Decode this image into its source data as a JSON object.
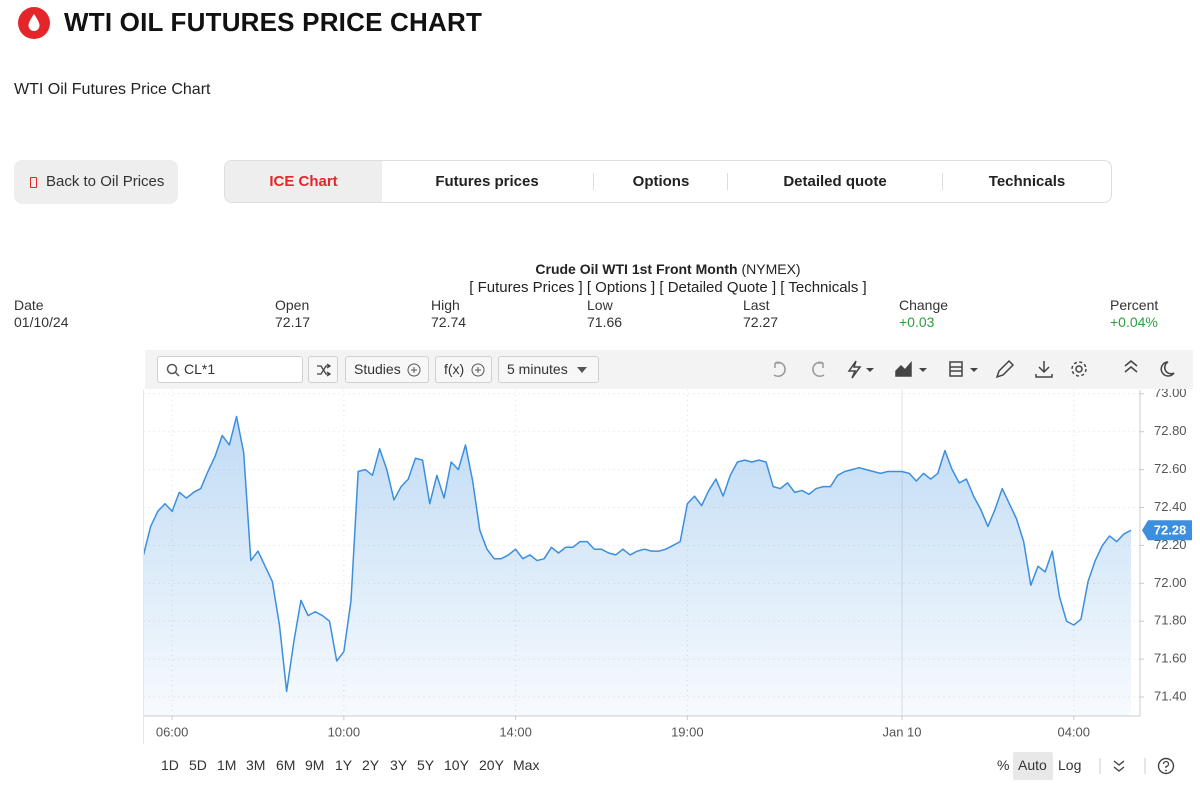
{
  "header": {
    "title": "WTI OIL FUTURES PRICE CHART",
    "subtitle": "WTI Oil Futures Price Chart"
  },
  "nav": {
    "back": "Back to Oil Prices",
    "tabs": [
      "ICE Chart",
      "Futures prices",
      "Options",
      "Detailed quote",
      "Technicals"
    ]
  },
  "quote": {
    "title": "Crude Oil WTI 1st Front Month",
    "exchange": "(NYMEX)",
    "links": [
      "[ Futures Prices ]",
      "[ Options ]",
      "[ Detailed Quote ]",
      "[ Technicals ]"
    ],
    "fields": [
      {
        "label": "Date",
        "value": "01/10/24"
      },
      {
        "label": "Open",
        "value": "72.17"
      },
      {
        "label": "High",
        "value": "72.74"
      },
      {
        "label": "Low",
        "value": "71.66"
      },
      {
        "label": "Last",
        "value": "72.27"
      },
      {
        "label": "Change",
        "value": "+0.03"
      },
      {
        "label": "Percent",
        "value": "+0.04%"
      }
    ]
  },
  "toolbar": {
    "symbol": "CL*1",
    "studies": "Studies",
    "fx": "f(x)",
    "interval": "5 minutes"
  },
  "range_buttons": [
    "1D",
    "5D",
    "1M",
    "3M",
    "6M",
    "9M",
    "1Y",
    "2Y",
    "3Y",
    "5Y",
    "10Y",
    "20Y",
    "Max"
  ],
  "scale_buttons": [
    "%",
    "Auto",
    "Log"
  ],
  "chart_data": {
    "type": "line",
    "color": "#3b8fde",
    "grid": true,
    "categories": [
      null,
      null,
      null,
      null,
      "06:00",
      null,
      null,
      null,
      null,
      null,
      null,
      null,
      null,
      null,
      null,
      null,
      null,
      null,
      null,
      null,
      null,
      null,
      null,
      null,
      null,
      null,
      null,
      null,
      "10:00",
      null,
      null,
      null,
      null,
      null,
      null,
      null,
      null,
      null,
      null,
      null,
      null,
      null,
      null,
      null,
      null,
      null,
      null,
      null,
      null,
      null,
      null,
      null,
      "14:00",
      null,
      null,
      null,
      null,
      null,
      null,
      null,
      null,
      null,
      null,
      null,
      null,
      null,
      null,
      null,
      null,
      null,
      null,
      null,
      null,
      null,
      null,
      null,
      "19:00",
      null,
      null,
      null,
      null,
      null,
      null,
      null,
      null,
      null,
      null,
      null,
      null,
      null,
      null,
      null,
      null,
      null,
      null,
      null,
      null,
      null,
      null,
      null,
      null,
      null,
      null,
      null,
      null,
      null,
      "Jan 10",
      null,
      null,
      null,
      null,
      null,
      null,
      null,
      null,
      null,
      null,
      null,
      null,
      null,
      null,
      null,
      null,
      null,
      null,
      null,
      null,
      null,
      null,
      null,
      "04:00",
      null,
      null,
      null,
      null,
      null,
      null,
      null,
      null
    ],
    "values": [
      72.15,
      72.3,
      72.38,
      72.42,
      72.38,
      72.48,
      72.45,
      72.48,
      72.5,
      72.59,
      72.67,
      72.78,
      72.73,
      72.88,
      72.69,
      72.12,
      72.17,
      72.09,
      72.01,
      71.78,
      71.43,
      71.69,
      71.91,
      71.83,
      71.85,
      71.83,
      71.8,
      71.59,
      71.64,
      71.91,
      72.59,
      72.6,
      72.57,
      72.71,
      72.6,
      72.44,
      72.51,
      72.55,
      72.66,
      72.65,
      72.42,
      72.57,
      72.45,
      72.64,
      72.6,
      72.73,
      72.54,
      72.28,
      72.18,
      72.13,
      72.13,
      72.15,
      72.18,
      72.13,
      72.15,
      72.12,
      72.13,
      72.19,
      72.16,
      72.19,
      72.19,
      72.22,
      72.22,
      72.18,
      72.18,
      72.16,
      72.15,
      72.18,
      72.15,
      72.17,
      72.18,
      72.17,
      72.17,
      72.18,
      72.2,
      72.22,
      72.42,
      72.46,
      72.41,
      72.49,
      72.55,
      72.46,
      72.57,
      72.64,
      72.65,
      72.64,
      72.65,
      72.64,
      72.51,
      72.5,
      72.53,
      72.48,
      72.49,
      72.47,
      72.5,
      72.51,
      72.51,
      72.57,
      72.59,
      72.6,
      72.61,
      72.6,
      72.59,
      72.58,
      72.59,
      72.59,
      72.59,
      72.58,
      72.54,
      72.58,
      72.55,
      72.58,
      72.7,
      72.6,
      72.53,
      72.55,
      72.46,
      72.39,
      72.3,
      72.39,
      72.5,
      72.42,
      72.34,
      72.22,
      71.99,
      72.09,
      72.06,
      72.17,
      71.93,
      71.8,
      71.78,
      71.81,
      72.01,
      72.12,
      72.2,
      72.25,
      72.22,
      72.26,
      72.28
    ],
    "ylim": [
      71.3,
      73.02
    ],
    "yticks": [
      {
        "value": 71.4,
        "label": "71.40"
      },
      {
        "value": 71.6,
        "label": "71.60"
      },
      {
        "value": 71.8,
        "label": "71.80"
      },
      {
        "value": 72,
        "label": "72.00"
      },
      {
        "value": 72.2,
        "label": "72.20"
      },
      {
        "value": 72.4,
        "label": "72.40"
      },
      {
        "value": 72.6,
        "label": "72.60"
      },
      {
        "value": 72.8,
        "label": "72.80"
      },
      {
        "value": 73,
        "label": "73.00"
      }
    ]
  }
}
